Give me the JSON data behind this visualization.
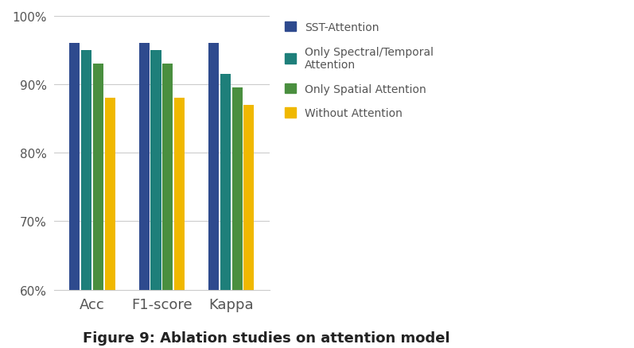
{
  "categories": [
    "Acc",
    "F1-score",
    "Kappa"
  ],
  "series": [
    {
      "label": "SST-Attention",
      "color": "#2e4a8e",
      "values": [
        96.0,
        96.0,
        96.0
      ]
    },
    {
      "label": "Only Spectral/Temporal\nAttention",
      "color": "#1e7f7a",
      "values": [
        95.0,
        95.0,
        91.5
      ]
    },
    {
      "label": "Only Spatial Attention",
      "color": "#4a8f3f",
      "values": [
        93.0,
        93.0,
        89.5
      ]
    },
    {
      "label": "Without Attention",
      "color": "#f0b800",
      "values": [
        88.0,
        88.0,
        87.0
      ]
    }
  ],
  "ylim": [
    60,
    100
  ],
  "yticks": [
    60,
    70,
    80,
    90,
    100
  ],
  "ytick_labels": [
    "60%",
    "70%",
    "80%",
    "90%",
    "100%"
  ],
  "bar_width": 0.15,
  "background_color": "#ffffff",
  "title": "Figure 9: Ablation studies on attention model",
  "title_fontsize": 13,
  "axis_fontsize": 12,
  "legend_fontsize": 10,
  "tick_fontsize": 11
}
